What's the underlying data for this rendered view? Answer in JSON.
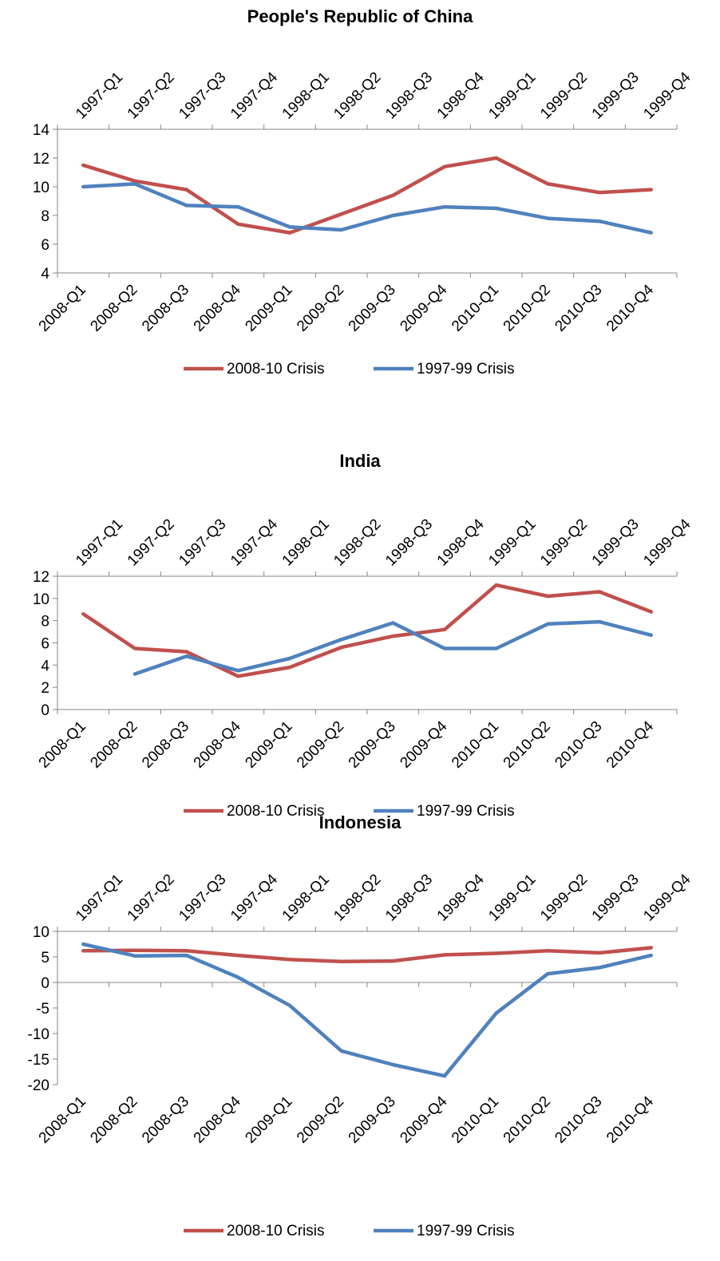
{
  "colors": {
    "red": "#C0504D",
    "blue": "#4F81BD",
    "axis": "#868686"
  },
  "top_axis_labels": [
    "1997-Q1",
    "1997-Q2",
    "1997-Q3",
    "1997-Q4",
    "1998-Q1",
    "1998-Q2",
    "1998-Q3",
    "1998-Q4",
    "1999-Q1",
    "1999-Q2",
    "1999-Q3",
    "1999-Q4"
  ],
  "chart_data": [
    {
      "type": "line",
      "title": "People's Republic of China",
      "categories": [
        "2008-Q1",
        "2008-Q2",
        "2008-Q3",
        "2008-Q4",
        "2009-Q1",
        "2009-Q2",
        "2009-Q3",
        "2009-Q4",
        "2010-Q1",
        "2010-Q2",
        "2010-Q3",
        "2010-Q4"
      ],
      "secondary_categories": [
        "1997-Q1",
        "1997-Q2",
        "1997-Q3",
        "1997-Q4",
        "1998-Q1",
        "1998-Q2",
        "1998-Q3",
        "1998-Q4",
        "1999-Q1",
        "1999-Q2",
        "1999-Q3",
        "1999-Q4"
      ],
      "ylim": [
        4,
        14
      ],
      "yticks": [
        4,
        6,
        8,
        10,
        12,
        14
      ],
      "grid": false,
      "legend": "bottom",
      "series": [
        {
          "name": "2008-10 Crisis",
          "color": "#C0504D",
          "values": [
            11.5,
            10.4,
            9.8,
            7.4,
            6.8,
            8.1,
            9.4,
            11.4,
            12.0,
            10.2,
            9.6,
            9.8
          ]
        },
        {
          "name": "1997-99 Crisis",
          "color": "#4F81BD",
          "values": [
            10.0,
            10.2,
            8.7,
            8.6,
            7.2,
            7.0,
            8.0,
            8.6,
            8.5,
            7.8,
            7.6,
            6.8
          ]
        }
      ]
    },
    {
      "type": "line",
      "title": "India",
      "categories": [
        "2008-Q1",
        "2008-Q2",
        "2008-Q3",
        "2008-Q4",
        "2009-Q1",
        "2009-Q2",
        "2009-Q3",
        "2009-Q4",
        "2010-Q1",
        "2010-Q2",
        "2010-Q3",
        "2010-Q4"
      ],
      "secondary_categories": [
        "1997-Q1",
        "1997-Q2",
        "1997-Q3",
        "1997-Q4",
        "1998-Q1",
        "1998-Q2",
        "1998-Q3",
        "1998-Q4",
        "1999-Q1",
        "1999-Q2",
        "1999-Q3",
        "1999-Q4"
      ],
      "ylim": [
        0,
        12
      ],
      "yticks": [
        0,
        2,
        4,
        6,
        8,
        10,
        12
      ],
      "grid": false,
      "legend": "bottom",
      "series": [
        {
          "name": "2008-10 Crisis",
          "color": "#C0504D",
          "values": [
            8.6,
            5.5,
            5.2,
            3.0,
            3.8,
            5.6,
            6.6,
            7.2,
            11.2,
            10.2,
            10.6,
            8.8
          ]
        },
        {
          "name": "1997-99 Crisis",
          "color": "#4F81BD",
          "values": [
            null,
            3.2,
            4.8,
            3.5,
            4.6,
            6.3,
            7.8,
            5.5,
            5.5,
            7.7,
            7.9,
            6.7
          ]
        }
      ]
    },
    {
      "type": "line",
      "title": "Indonesia",
      "categories": [
        "2008-Q1",
        "2008-Q2",
        "2008-Q3",
        "2008-Q4",
        "2009-Q1",
        "2009-Q2",
        "2009-Q3",
        "2009-Q4",
        "2010-Q1",
        "2010-Q2",
        "2010-Q3",
        "2010-Q4"
      ],
      "secondary_categories": [
        "1997-Q1",
        "1997-Q2",
        "1997-Q3",
        "1997-Q4",
        "1998-Q1",
        "1998-Q2",
        "1998-Q3",
        "1998-Q4",
        "1999-Q1",
        "1999-Q2",
        "1999-Q3",
        "1999-Q4"
      ],
      "ylim": [
        -20,
        10
      ],
      "yticks": [
        -20,
        -15,
        -10,
        -5,
        0,
        5,
        10
      ],
      "grid": false,
      "legend": "bottom",
      "series": [
        {
          "name": "2008-10 Crisis",
          "color": "#C0504D",
          "values": [
            6.2,
            6.3,
            6.2,
            5.3,
            4.5,
            4.1,
            4.2,
            5.4,
            5.7,
            6.2,
            5.8,
            6.8
          ]
        },
        {
          "name": "1997-99 Crisis",
          "color": "#4F81BD",
          "values": [
            7.5,
            5.2,
            5.3,
            1.0,
            -4.5,
            -13.4,
            -16.1,
            -18.3,
            -6.0,
            1.7,
            2.9,
            5.3
          ]
        }
      ]
    }
  ]
}
